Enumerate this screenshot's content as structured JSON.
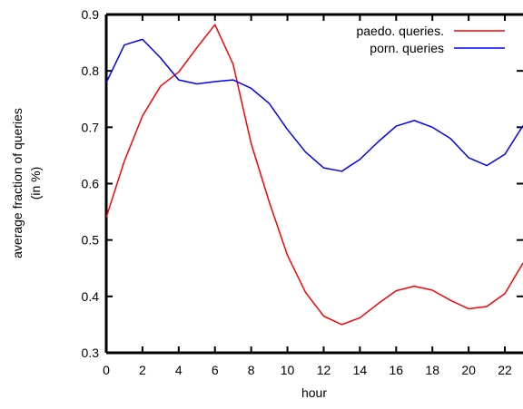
{
  "chart_data": {
    "type": "line",
    "title": "",
    "xlabel": "hour",
    "ylabel_lines": [
      "average fraction of queries",
      "(in %)"
    ],
    "xlim": [
      0,
      23
    ],
    "ylim": [
      0.3,
      0.9
    ],
    "xticks": [
      0,
      2,
      4,
      6,
      8,
      10,
      12,
      14,
      16,
      18,
      20,
      22
    ],
    "yticks": [
      0.3,
      0.4,
      0.5,
      0.6,
      0.7,
      0.8,
      0.9
    ],
    "ytick_labels": [
      "0.3",
      "0.4",
      "0.5",
      "0.6",
      "0.7",
      "0.8",
      "0.9"
    ],
    "grid": false,
    "legend_position": "top-right",
    "x": [
      0,
      1,
      2,
      3,
      4,
      5,
      6,
      7,
      8,
      9,
      10,
      11,
      12,
      13,
      14,
      15,
      16,
      17,
      18,
      19,
      20,
      21,
      22,
      23
    ],
    "series": [
      {
        "name": "paedo. queries.",
        "color": "#ff0000",
        "values": [
          0.54,
          0.64,
          0.72,
          0.773,
          0.798,
          0.841,
          0.882,
          0.812,
          0.671,
          0.567,
          0.473,
          0.407,
          0.365,
          0.35,
          0.362,
          0.387,
          0.41,
          0.418,
          0.411,
          0.393,
          0.378,
          0.382,
          0.405,
          0.459
        ]
      },
      {
        "name": "porn. queries",
        "color": "#0000ff",
        "values": [
          0.779,
          0.846,
          0.856,
          0.823,
          0.784,
          0.777,
          0.781,
          0.784,
          0.769,
          0.742,
          0.696,
          0.656,
          0.628,
          0.622,
          0.643,
          0.674,
          0.702,
          0.712,
          0.7,
          0.68,
          0.646,
          0.632,
          0.652,
          0.703
        ]
      }
    ]
  }
}
